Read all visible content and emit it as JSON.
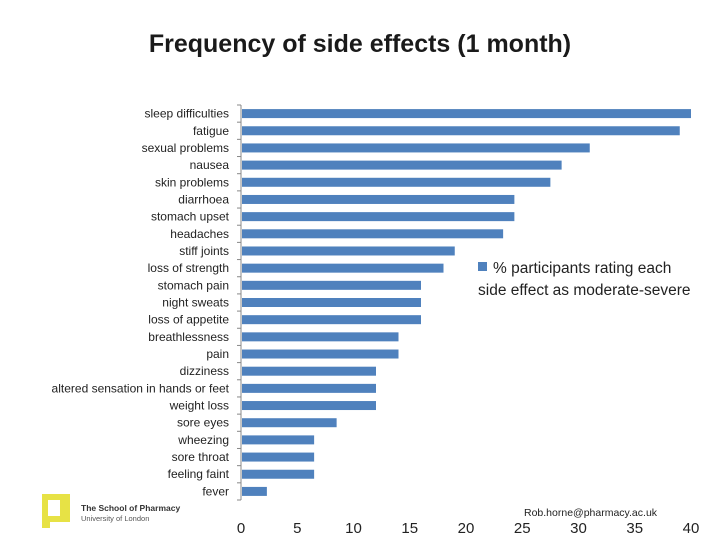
{
  "chart_data": {
    "type": "bar",
    "orientation": "horizontal",
    "title": "Frequency of side effects (1 month)",
    "categories": [
      "sleep difficulties",
      "fatigue",
      "sexual problems",
      "nausea",
      "skin problems",
      "diarrhoea",
      "stomach upset",
      "headaches",
      "stiff joints",
      "loss of strength",
      "stomach pain",
      "night sweats",
      "loss of appetite",
      "breathlessness",
      "pain",
      "dizziness",
      "altered sensation in hands or feet",
      "weight loss",
      "sore eyes",
      "wheezing",
      "sore throat",
      "feeling faint",
      "fever"
    ],
    "series": [
      {
        "name": "% participants rating each side effect as moderate-severe",
        "values": [
          40,
          39,
          31,
          28.5,
          27.5,
          24.3,
          24.3,
          23.3,
          19,
          18,
          16,
          16,
          16,
          14,
          14,
          12,
          12,
          12,
          8.5,
          6.5,
          6.5,
          6.5,
          2.3
        ]
      }
    ],
    "xlim": [
      0,
      40
    ],
    "xticks": [
      0,
      5,
      10,
      15,
      20,
      25,
      30,
      35,
      40
    ],
    "xlabel": "",
    "ylabel": "",
    "legend": "right",
    "color": "#4f81bd"
  },
  "footer": {
    "logo_line1": "The School of Pharmacy",
    "logo_line2": "University of London",
    "email": "Rob.horne@pharmacy.ac.uk"
  },
  "colors": {
    "bar": "#4f81bd",
    "logo": "#e7e245"
  }
}
